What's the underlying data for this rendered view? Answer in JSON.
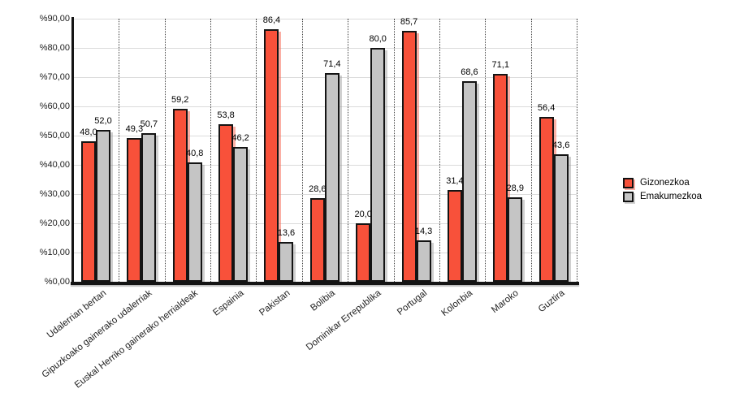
{
  "chart_data": {
    "type": "bar",
    "title": "",
    "categories": [
      "Udalerrian bertan",
      "Gipuzkoako gainerako udalerriak",
      "Euskal Herriko gainerako herrialdeak",
      "Espainia",
      "Pakistan",
      "Bolibia",
      "Dominikar Errepublika",
      "Portugal",
      "Kolonbia",
      "Maroko",
      "Guztira"
    ],
    "series": [
      {
        "name": "Gizonezkoa",
        "color": "#f8513a",
        "values": [
          48.0,
          49.3,
          59.2,
          53.8,
          86.4,
          28.6,
          20.0,
          85.7,
          31.4,
          71.1,
          56.4
        ]
      },
      {
        "name": "Emakumezkoa",
        "color": "#c5c5c5",
        "values": [
          52.0,
          50.7,
          40.8,
          46.2,
          13.6,
          71.4,
          80.0,
          14.3,
          68.6,
          28.9,
          43.6
        ]
      }
    ],
    "value_labels_shown": true,
    "decimal_separator": ",",
    "ylim": [
      0,
      90
    ],
    "y_tick_step": 10,
    "y_tick_labels": [
      "%0,00",
      "%10,00",
      "%20,00",
      "%30,00",
      "%40,00",
      "%50,00",
      "%60,00",
      "%70,00",
      "%80,00",
      "%90,00"
    ],
    "xlabel": "",
    "ylabel": "",
    "grid": {
      "horizontal": "solid-light-gray",
      "vertical": "dotted-category-separators"
    },
    "legend_position": "right"
  },
  "legend": {
    "items": [
      {
        "label": "Gizonezkoa"
      },
      {
        "label": "Emakumezkoa"
      }
    ]
  }
}
